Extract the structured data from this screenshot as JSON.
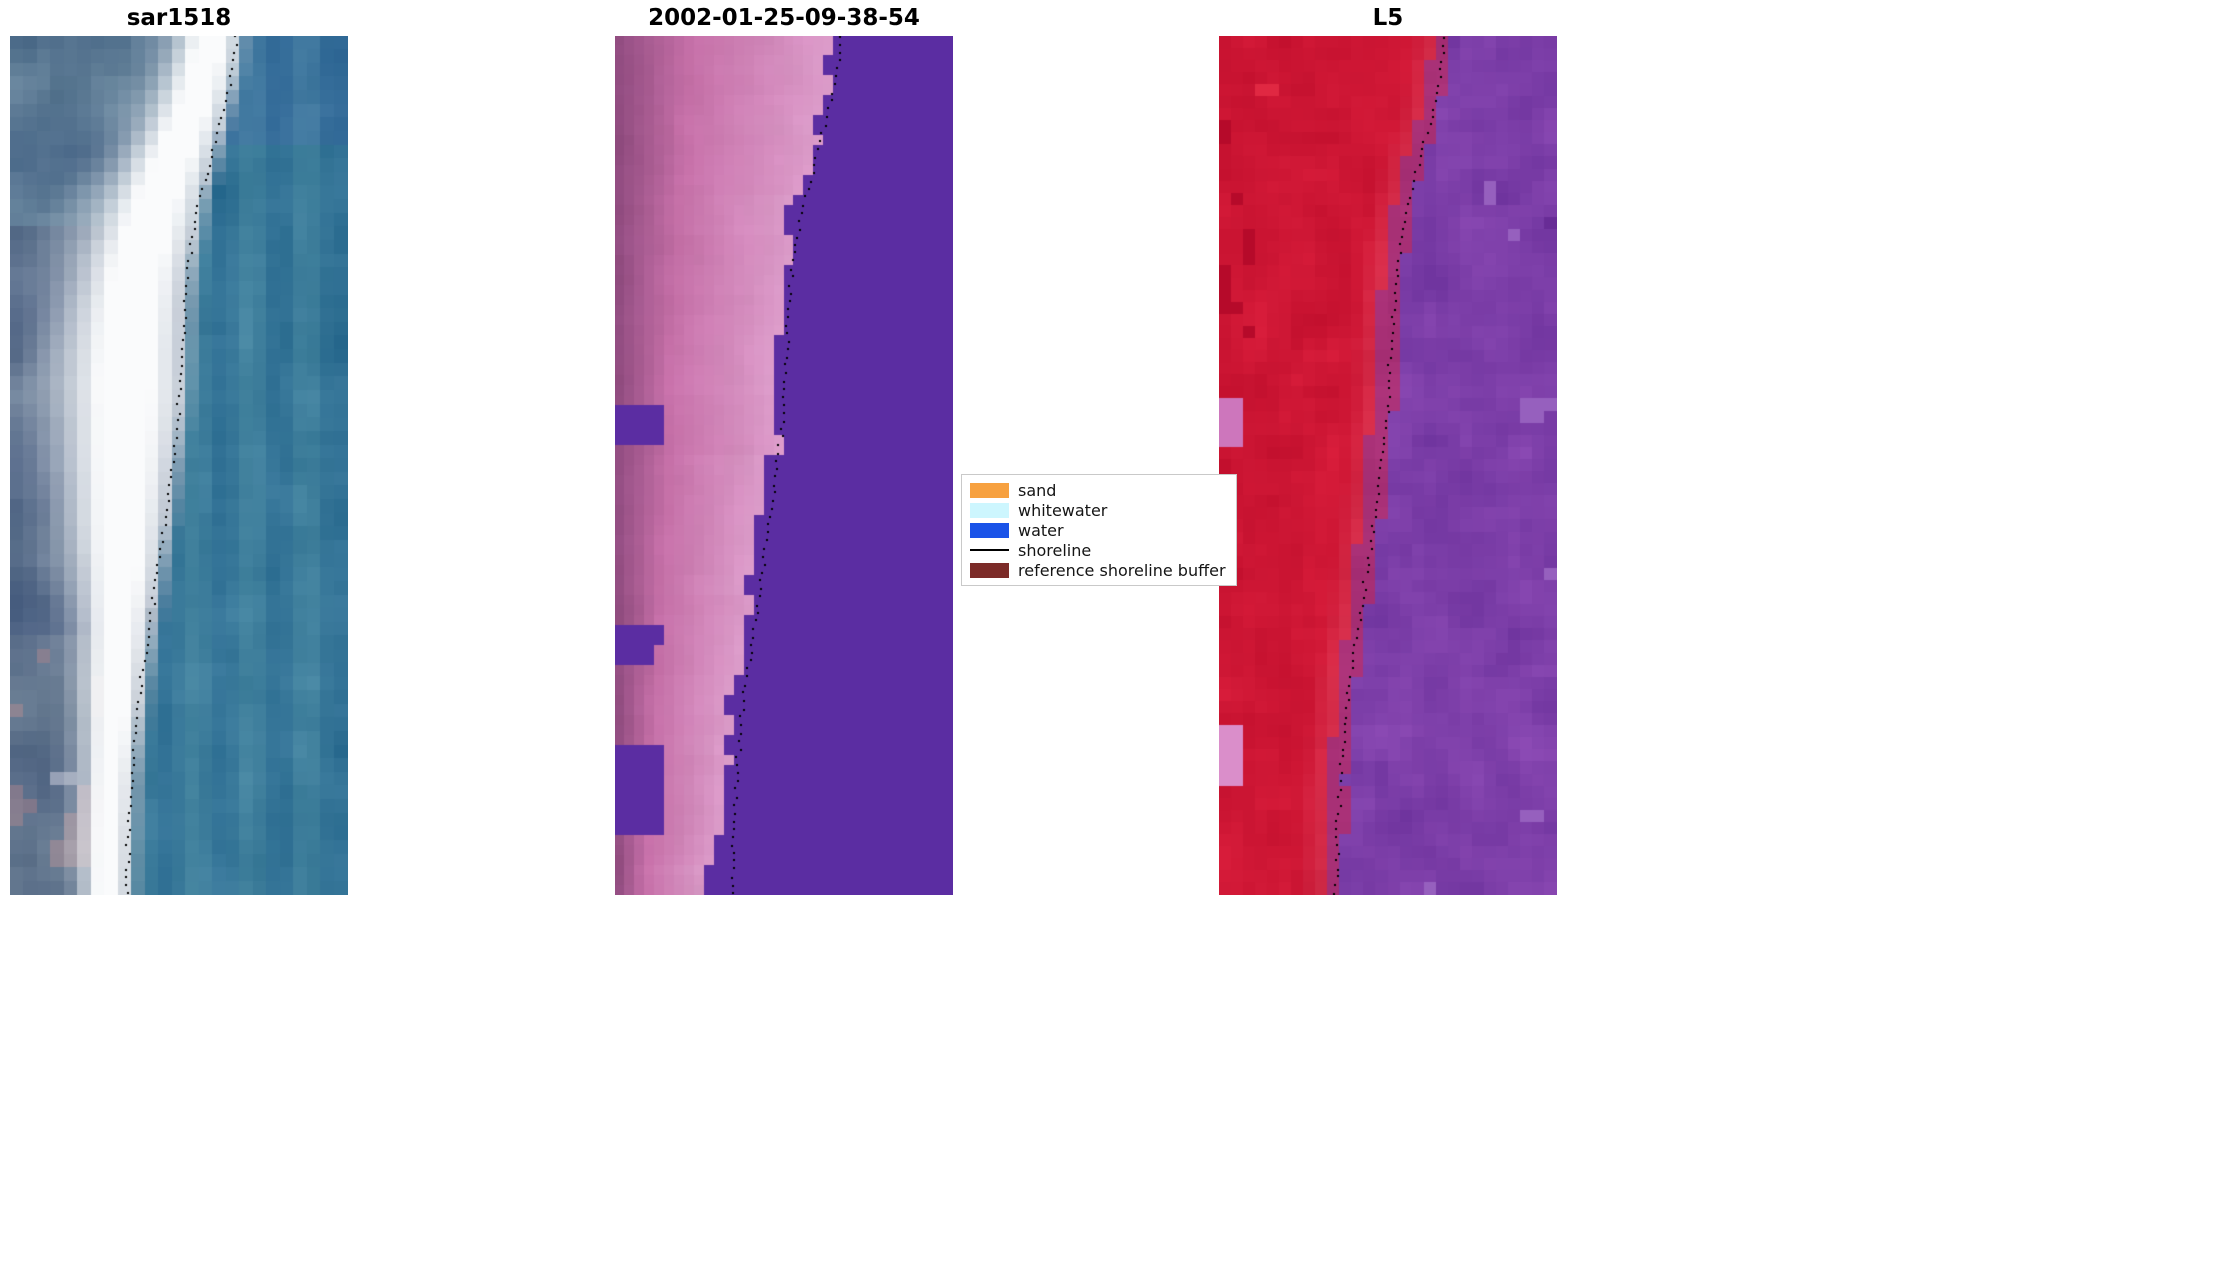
{
  "chart_data": {
    "type": "image-panels",
    "background": "#ffffff",
    "panels": [
      {
        "title": "sar1518",
        "kind": "sar",
        "palette": {
          "left_base": "#4c6282",
          "left_dark": "#304868",
          "left_light": "#929cb2",
          "band_white": "#fafbfc",
          "right_teal": "#3a7a9a",
          "warm_tint": "#9a7a80"
        }
      },
      {
        "title": "2002-01-25-09-38-54",
        "kind": "classification",
        "palette": {
          "water": "#5b2da2",
          "land_dark": "#8e4a7e",
          "land_mid": "#c670a8",
          "land_light": "#dc9cca"
        }
      },
      {
        "title": "L5",
        "kind": "false_color",
        "palette": {
          "land_red": "#cd1634",
          "land_bright": "#e02842",
          "pink_spot": "#cd76bc",
          "water_purple": "#7c3ea8",
          "water_light": "#9660be",
          "edge_magenta": "#a83076"
        }
      }
    ],
    "shoreline": {
      "color": "#000000",
      "style": "dotted",
      "path_t_frac": [
        [
          0,
          0.67
        ],
        [
          0.06,
          0.65
        ],
        [
          0.12,
          0.61
        ],
        [
          0.2,
          0.555
        ],
        [
          0.27,
          0.525
        ],
        [
          0.35,
          0.51
        ],
        [
          0.44,
          0.498
        ],
        [
          0.52,
          0.475
        ],
        [
          0.6,
          0.445
        ],
        [
          0.68,
          0.415
        ],
        [
          0.76,
          0.385
        ],
        [
          0.85,
          0.362
        ],
        [
          0.93,
          0.35
        ],
        [
          1,
          0.345
        ]
      ]
    },
    "legend": {
      "entries": [
        {
          "label": "sand",
          "color": "#f7a140",
          "swatch": "patch"
        },
        {
          "label": "whitewater",
          "color": "#cdf6fe",
          "swatch": "patch"
        },
        {
          "label": "water",
          "color": "#1a53e8",
          "swatch": "patch"
        },
        {
          "label": "shoreline",
          "color": "#000000",
          "swatch": "line"
        },
        {
          "label": "reference shoreline buffer",
          "color": "#7c2b28",
          "swatch": "patch"
        }
      ]
    }
  }
}
